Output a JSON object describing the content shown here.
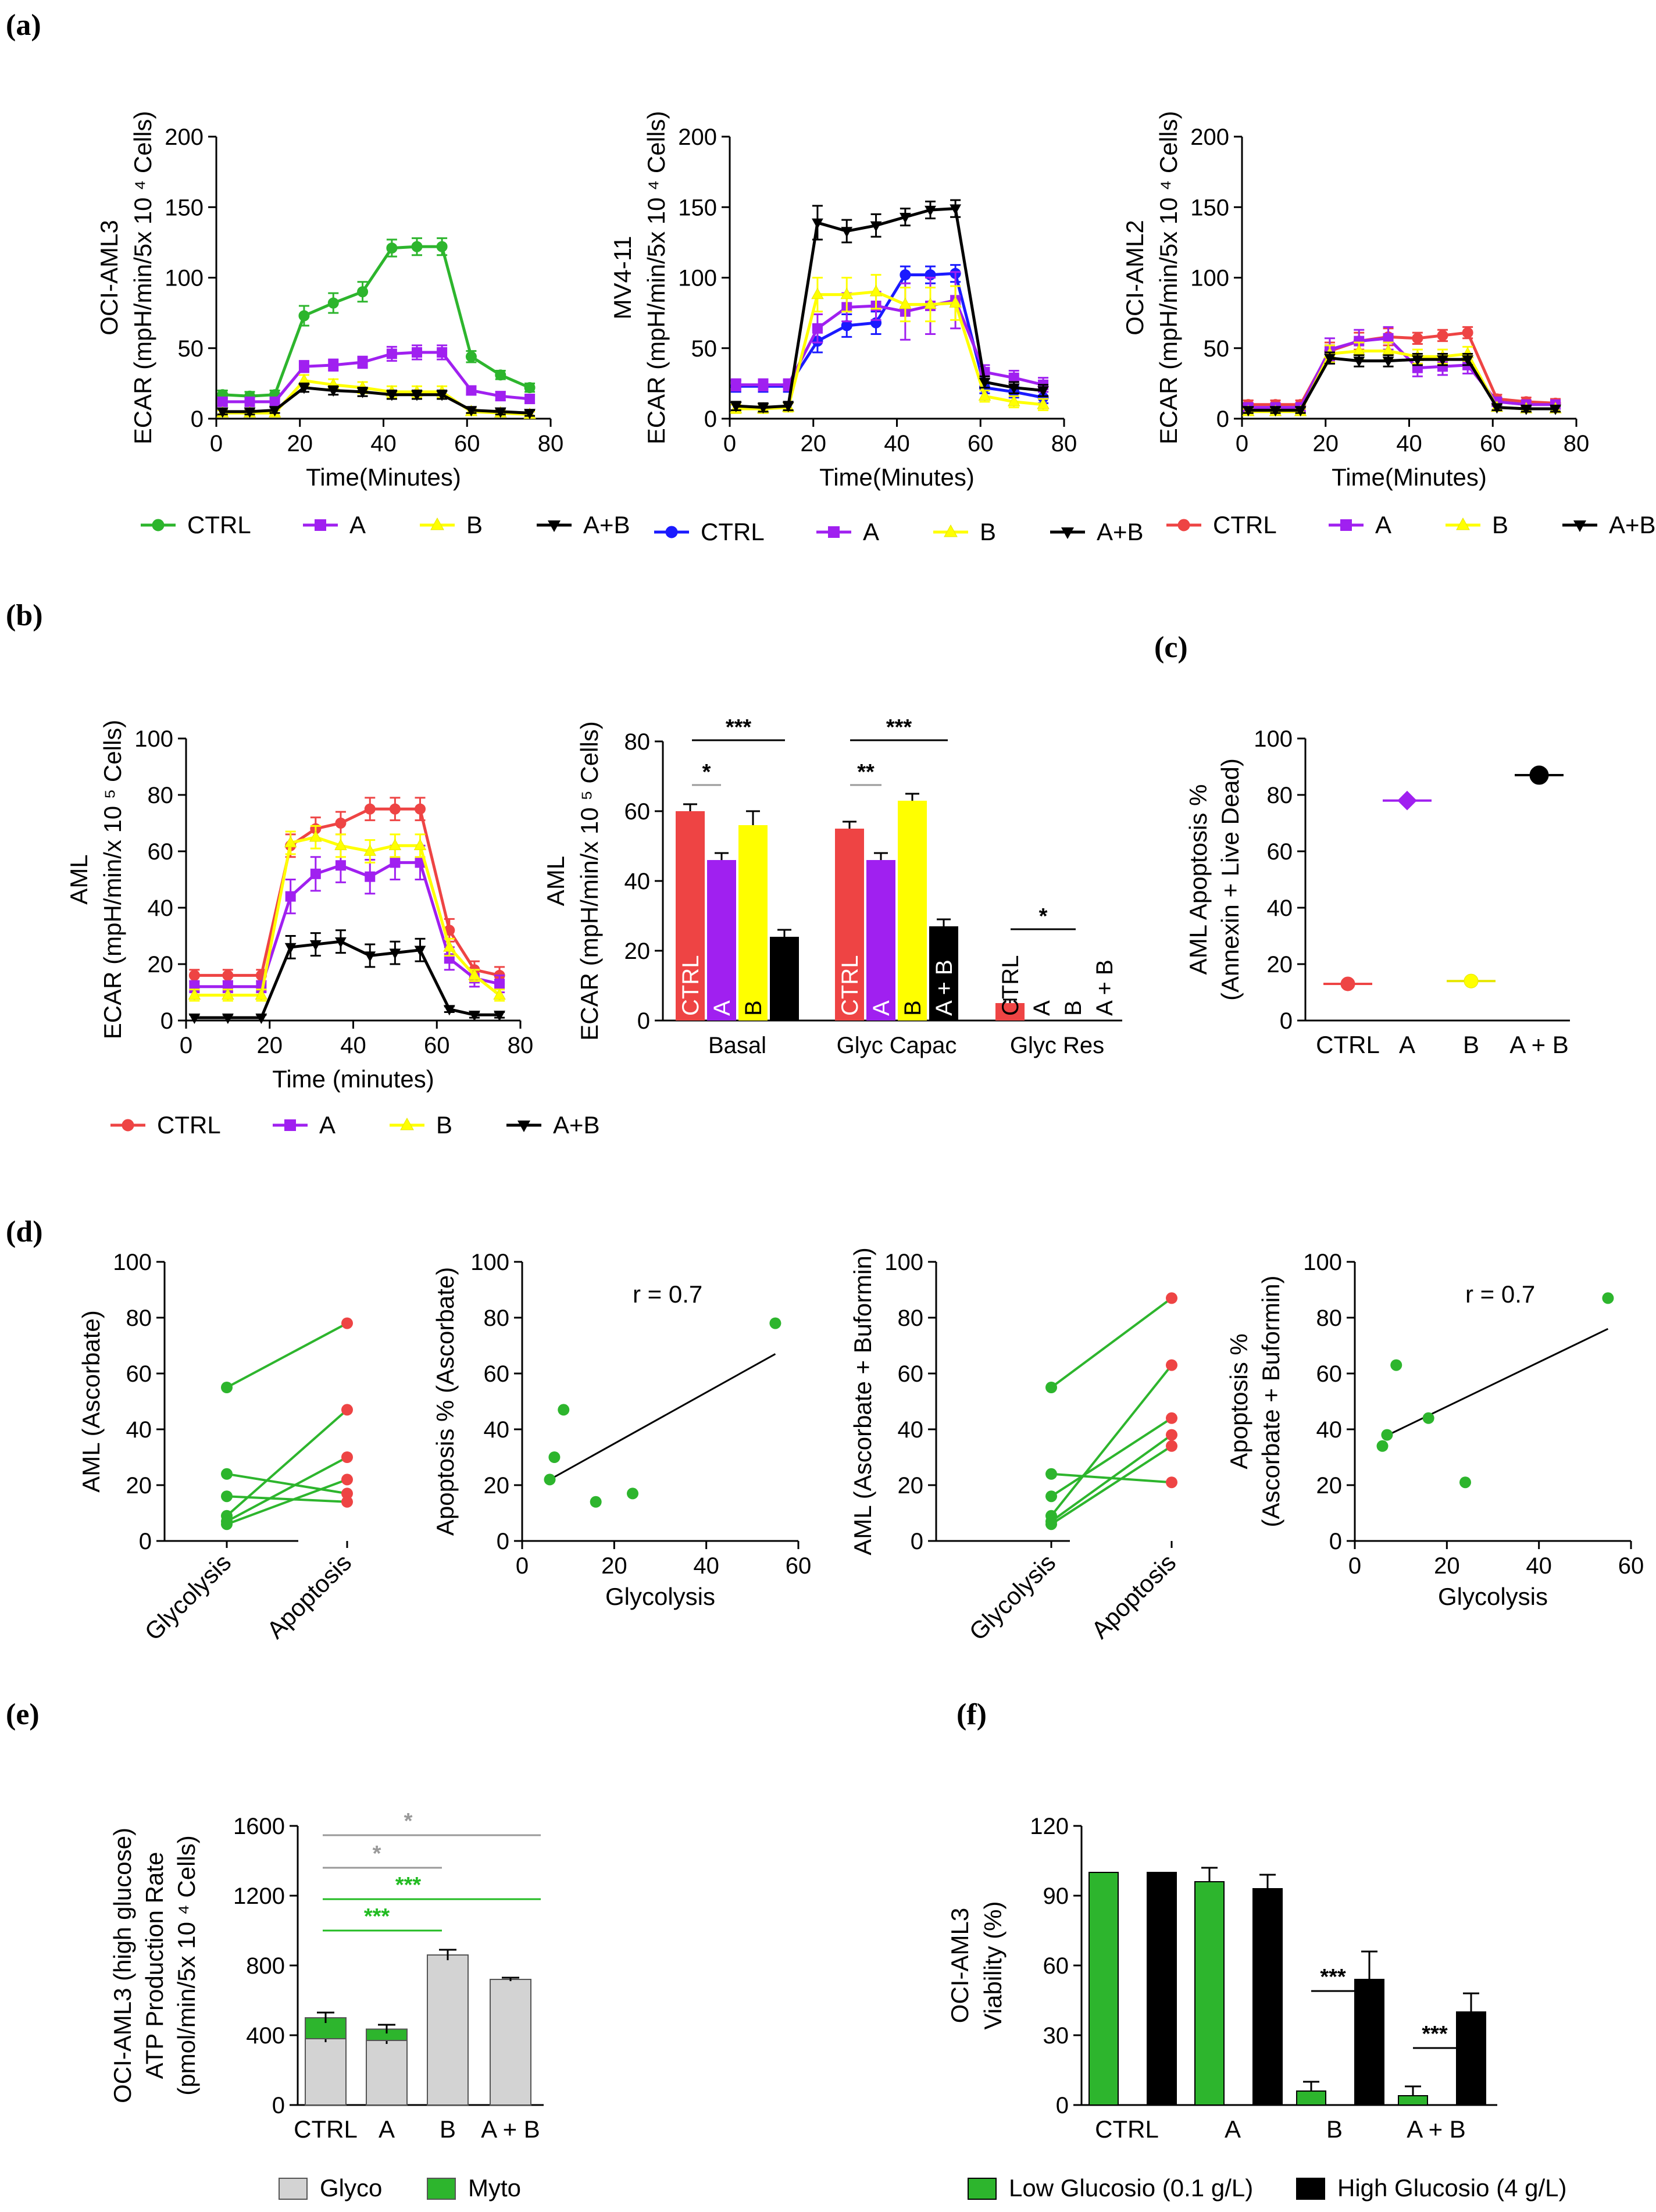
{
  "panel_labels": [
    "(a)",
    "(b)",
    "(c)",
    "(d)",
    "(e)",
    "(f)"
  ],
  "colors": {
    "green": "#2db52d",
    "purple": "#a020f0",
    "yellow": "#ffff00",
    "black": "#000000",
    "blue": "#1a1aff",
    "red": "#ee4444",
    "grey": "#d3d3d3",
    "sigGrey": "#999999",
    "sigGreen": "#22bb22"
  },
  "chart_data": [
    {
      "id": "a1",
      "type": "line",
      "title": "",
      "ylabel1": "OCI-AML3",
      "ylabel2": "ECAR (mpH/min/5x 10 ⁴ Cells)",
      "xlabel": "Time(Minutes)",
      "xlim": [
        0,
        80
      ],
      "ylim": [
        0,
        200
      ],
      "xticks": [
        "0",
        "20",
        "40",
        "60",
        "80"
      ],
      "yticks": [
        "0",
        "50",
        "100",
        "150",
        "200"
      ],
      "x": [
        1.5,
        8,
        14,
        21,
        28,
        35,
        42,
        48,
        54,
        61,
        68,
        75
      ],
      "series": [
        {
          "name": "CTRL",
          "color": "green",
          "marker": "circle",
          "values": [
            17,
            16,
            17,
            73,
            82,
            90,
            121,
            122,
            122,
            44,
            31,
            22
          ],
          "err": [
            3,
            3,
            3,
            7,
            7,
            7,
            6,
            6,
            6,
            4,
            3,
            3
          ]
        },
        {
          "name": "A",
          "color": "purple",
          "marker": "square",
          "values": [
            12,
            12,
            12,
            37,
            38,
            40,
            46,
            47,
            47,
            20,
            16,
            14
          ],
          "err": [
            3,
            3,
            3,
            4,
            4,
            4,
            5,
            5,
            5,
            3,
            3,
            3
          ]
        },
        {
          "name": "B",
          "color": "yellow",
          "marker": "triangle-up",
          "values": [
            4,
            4,
            4,
            27,
            24,
            22,
            19,
            19,
            19,
            5,
            4,
            3
          ],
          "err": [
            2,
            2,
            2,
            4,
            4,
            4,
            4,
            4,
            4,
            2,
            2,
            2
          ]
        },
        {
          "name": "A+B",
          "color": "black",
          "marker": "triangle-down",
          "values": [
            5,
            5,
            6,
            22,
            20,
            19,
            17,
            17,
            17,
            6,
            5,
            4
          ],
          "err": [
            2,
            2,
            2,
            3,
            3,
            3,
            3,
            3,
            3,
            2,
            2,
            2
          ]
        }
      ]
    },
    {
      "id": "a2",
      "type": "line",
      "title": "",
      "ylabel1": "MV4-11",
      "ylabel2": "ECAR (mpH/min/5x 10 ⁴ Cells)",
      "xlabel": "Time(Minutes)",
      "xlim": [
        0,
        80
      ],
      "ylim": [
        0,
        200
      ],
      "xticks": [
        "0",
        "20",
        "40",
        "60",
        "80"
      ],
      "yticks": [
        "0",
        "50",
        "100",
        "150",
        "200"
      ],
      "x": [
        1.5,
        8,
        14,
        21,
        28,
        35,
        42,
        48,
        54,
        61,
        68,
        75
      ],
      "series": [
        {
          "name": "CTRL",
          "color": "blue",
          "marker": "circle",
          "values": [
            23,
            23,
            23,
            55,
            66,
            68,
            102,
            102,
            103,
            22,
            19,
            15
          ],
          "err": [
            4,
            4,
            4,
            8,
            8,
            8,
            6,
            6,
            6,
            4,
            4,
            4
          ]
        },
        {
          "name": "A",
          "color": "purple",
          "marker": "square",
          "values": [
            24,
            24,
            24,
            64,
            79,
            80,
            76,
            80,
            84,
            33,
            29,
            24
          ],
          "err": [
            4,
            4,
            4,
            10,
            10,
            10,
            20,
            20,
            20,
            5,
            5,
            5
          ]
        },
        {
          "name": "B",
          "color": "yellow",
          "marker": "triangle-up",
          "values": [
            7,
            7,
            8,
            88,
            88,
            90,
            81,
            81,
            82,
            16,
            12,
            10
          ],
          "err": [
            3,
            3,
            3,
            12,
            12,
            12,
            12,
            12,
            12,
            4,
            4,
            4
          ]
        },
        {
          "name": "A+B",
          "color": "black",
          "marker": "triangle-down",
          "values": [
            9,
            8,
            9,
            139,
            133,
            137,
            143,
            148,
            149,
            26,
            22,
            20
          ],
          "err": [
            3,
            3,
            3,
            12,
            8,
            8,
            6,
            6,
            6,
            4,
            4,
            4
          ]
        }
      ]
    },
    {
      "id": "a3",
      "type": "line",
      "title": "",
      "ylabel1": "OCI-AML2",
      "ylabel2": "ECAR (mpH/min/5x 10 ⁴ Cells)",
      "xlabel": "Time(Minutes)",
      "xlim": [
        0,
        80
      ],
      "ylim": [
        0,
        200
      ],
      "xticks": [
        "0",
        "20",
        "40",
        "60",
        "80"
      ],
      "yticks": [
        "0",
        "50",
        "100",
        "150",
        "200"
      ],
      "x": [
        1.5,
        8,
        14,
        21,
        28,
        35,
        42,
        48,
        54,
        61,
        68,
        75
      ],
      "series": [
        {
          "name": "CTRL",
          "color": "red",
          "marker": "circle",
          "values": [
            10,
            10,
            10,
            48,
            55,
            58,
            57,
            59,
            61,
            14,
            12,
            11
          ],
          "err": [
            3,
            3,
            3,
            6,
            6,
            6,
            4,
            4,
            4,
            3,
            3,
            3
          ]
        },
        {
          "name": "A",
          "color": "purple",
          "marker": "square",
          "values": [
            8,
            8,
            8,
            49,
            55,
            57,
            36,
            37,
            38,
            12,
            10,
            10
          ],
          "err": [
            3,
            3,
            3,
            8,
            8,
            8,
            6,
            6,
            6,
            3,
            3,
            3
          ]
        },
        {
          "name": "B",
          "color": "yellow",
          "marker": "triangle-up",
          "values": [
            5,
            5,
            5,
            46,
            48,
            48,
            44,
            44,
            46,
            8,
            7,
            7
          ],
          "err": [
            2,
            2,
            2,
            6,
            6,
            6,
            5,
            5,
            5,
            2,
            2,
            2
          ]
        },
        {
          "name": "A+B",
          "color": "black",
          "marker": "triangle-down",
          "values": [
            6,
            6,
            6,
            43,
            41,
            41,
            42,
            42,
            42,
            8,
            7,
            7
          ],
          "err": [
            2,
            2,
            2,
            4,
            4,
            4,
            4,
            4,
            4,
            2,
            2,
            2
          ]
        }
      ]
    },
    {
      "id": "b1",
      "type": "line",
      "title": "",
      "ylabel1": "AML",
      "ylabel2": "ECAR (mpH/min/x 10 ⁵ Cells)",
      "xlabel": "Time (minutes)",
      "xlim": [
        0,
        80
      ],
      "ylim": [
        0,
        100
      ],
      "xticks": [
        "0",
        "20",
        "40",
        "60",
        "80"
      ],
      "yticks": [
        "0",
        "20",
        "40",
        "60",
        "80",
        "100"
      ],
      "x": [
        2,
        10,
        18,
        25,
        31,
        37,
        44,
        50,
        56,
        63,
        69,
        75
      ],
      "series": [
        {
          "name": "CTRL",
          "color": "red",
          "marker": "circle",
          "values": [
            16,
            16,
            16,
            62,
            68,
            70,
            75,
            75,
            75,
            32,
            18,
            16
          ],
          "err": [
            2,
            2,
            2,
            4,
            4,
            4,
            4,
            4,
            4,
            4,
            3,
            3
          ]
        },
        {
          "name": "A",
          "color": "purple",
          "marker": "square",
          "values": [
            12,
            12,
            12,
            44,
            52,
            55,
            51,
            56,
            56,
            22,
            15,
            13
          ],
          "err": [
            2,
            2,
            2,
            6,
            6,
            6,
            6,
            6,
            6,
            4,
            3,
            3
          ]
        },
        {
          "name": "B",
          "color": "yellow",
          "marker": "triangle-up",
          "values": [
            9,
            9,
            9,
            63,
            65,
            62,
            60,
            62,
            62,
            26,
            16,
            9
          ],
          "err": [
            2,
            2,
            2,
            4,
            4,
            4,
            4,
            4,
            4,
            3,
            2,
            2
          ]
        },
        {
          "name": "A+B",
          "color": "black",
          "marker": "triangle-down",
          "values": [
            1,
            1,
            1,
            26,
            27,
            28,
            23,
            24,
            25,
            4,
            2,
            2
          ],
          "err": [
            1,
            1,
            1,
            4,
            4,
            4,
            4,
            4,
            4,
            1,
            1,
            1
          ]
        }
      ]
    },
    {
      "id": "b2",
      "type": "bar",
      "title": "",
      "ylabel1": "AML",
      "ylabel2": "ECAR (mpH/min/x 10 ⁵ Cells)",
      "ylim": [
        0,
        80
      ],
      "yticks": [
        "0",
        "20",
        "40",
        "60",
        "80"
      ],
      "categories": [
        "Basal",
        "Glyc Capac",
        "Glyc Res"
      ],
      "bar_labels": [
        "CTRL",
        "A",
        "B",
        "A + B"
      ],
      "series_colors": [
        "red",
        "purple",
        "yellow",
        "black"
      ],
      "values": [
        [
          60,
          46,
          56,
          24
        ],
        [
          55,
          46,
          63,
          27
        ],
        [
          5,
          0,
          0,
          0
        ]
      ],
      "err": [
        [
          2,
          2,
          4,
          2
        ],
        [
          2,
          2,
          2,
          2
        ],
        [
          1,
          0,
          0,
          0
        ]
      ],
      "significance": [
        "*",
        "***",
        "**",
        "***",
        "*"
      ]
    },
    {
      "id": "c",
      "type": "scatter",
      "title": "",
      "ylabel1": "AML Apoptosis %",
      "ylabel2": "(Annexin + Live Dead)",
      "ylim": [
        0,
        100
      ],
      "yticks": [
        "0",
        "20",
        "40",
        "60",
        "80",
        "100"
      ],
      "categories": [
        "CTRL",
        "A",
        "B",
        "A + B"
      ],
      "series_colors": [
        "red",
        "purple",
        "yellow",
        "black"
      ],
      "values": [
        13,
        78,
        14,
        87
      ]
    },
    {
      "id": "d1",
      "type": "line",
      "title": "",
      "ylabel1": "AML (Ascorbate)",
      "ylim": [
        0,
        100
      ],
      "yticks": [
        "0",
        "20",
        "40",
        "60",
        "80",
        "100"
      ],
      "categories": [
        "Glycolysis",
        "Apoptosis"
      ],
      "pairs": [
        [
          55,
          78
        ],
        [
          24,
          17
        ],
        [
          16,
          14
        ],
        [
          9,
          47
        ],
        [
          7,
          30
        ],
        [
          6,
          22
        ]
      ]
    },
    {
      "id": "d2",
      "type": "scatter",
      "title": "",
      "ylabel1": "Apoptosis % (Ascorbate)",
      "xlabel": "Glycolysis",
      "annotation": "r = 0.7",
      "xlim": [
        0,
        60
      ],
      "ylim": [
        0,
        100
      ],
      "xticks": [
        "0",
        "20",
        "40",
        "60"
      ],
      "yticks": [
        "0",
        "20",
        "40",
        "60",
        "80",
        "100"
      ],
      "points": [
        [
          55,
          78
        ],
        [
          24,
          17
        ],
        [
          16,
          14
        ],
        [
          9,
          47
        ],
        [
          7,
          30
        ],
        [
          6,
          22
        ]
      ],
      "fit": [
        [
          6,
          22
        ],
        [
          55,
          67
        ]
      ]
    },
    {
      "id": "d3",
      "type": "line",
      "title": "",
      "ylabel1": "AML (Ascorbate + Buformin)",
      "ylim": [
        0,
        100
      ],
      "yticks": [
        "0",
        "20",
        "40",
        "60",
        "80",
        "100"
      ],
      "categories": [
        "Glycolysis",
        "Apoptosis"
      ],
      "pairs": [
        [
          55,
          87
        ],
        [
          24,
          21
        ],
        [
          16,
          44
        ],
        [
          9,
          63
        ],
        [
          7,
          38
        ],
        [
          6,
          34
        ]
      ]
    },
    {
      "id": "d4",
      "type": "scatter",
      "title": "",
      "ylabel1": "Apoptosis %",
      "ylabel2": "(Ascorbate + Buformin)",
      "xlabel": "Glycolysis",
      "annotation": "r = 0.7",
      "xlim": [
        0,
        60
      ],
      "ylim": [
        0,
        100
      ],
      "xticks": [
        "0",
        "20",
        "40",
        "60"
      ],
      "yticks": [
        "0",
        "20",
        "40",
        "60",
        "80",
        "100"
      ],
      "points": [
        [
          55,
          87
        ],
        [
          24,
          21
        ],
        [
          16,
          44
        ],
        [
          9,
          63
        ],
        [
          7,
          38
        ],
        [
          6,
          34
        ]
      ],
      "fit": [
        [
          6,
          37
        ],
        [
          55,
          76
        ]
      ]
    },
    {
      "id": "e",
      "type": "bar",
      "title": "",
      "ylabel1": "OCI-AML3 (high glucose)",
      "ylabel2": "ATP Production Rate",
      "ylabel3": "(pmol/min/5x 10 ⁴ Cells)",
      "ylim": [
        0,
        1600
      ],
      "yticks": [
        "0",
        "400",
        "800",
        "1200",
        "1600"
      ],
      "categories": [
        "CTRL",
        "A",
        "B",
        "A + B"
      ],
      "series": [
        {
          "name": "Glyco",
          "color": "grey",
          "values": [
            380,
            370,
            860,
            720
          ],
          "err": [
            20,
            20,
            30,
            10
          ]
        },
        {
          "name": "Myto",
          "color": "green",
          "values": [
            120,
            65,
            0,
            0
          ],
          "err": [
            30,
            25,
            0,
            0
          ]
        }
      ],
      "significance": [
        "*",
        "*",
        "***",
        "***"
      ]
    },
    {
      "id": "f",
      "type": "bar",
      "title": "",
      "ylabel1": "OCI-AML3",
      "ylabel2": "Viability (%)",
      "ylim": [
        0,
        120
      ],
      "yticks": [
        "0",
        "30",
        "60",
        "90",
        "120"
      ],
      "categories": [
        "CTRL",
        "A",
        "B",
        "A + B"
      ],
      "series": [
        {
          "name": "Low Glucosio (0.1 g/L)",
          "color": "green",
          "values": [
            100,
            96,
            6,
            4
          ],
          "err": [
            0,
            6,
            4,
            4
          ]
        },
        {
          "name": "High Glucosio (4 g/L)",
          "color": "black",
          "values": [
            100,
            93,
            54,
            40
          ],
          "err": [
            0,
            6,
            12,
            8
          ]
        }
      ],
      "significance": [
        "***",
        "***"
      ]
    }
  ]
}
